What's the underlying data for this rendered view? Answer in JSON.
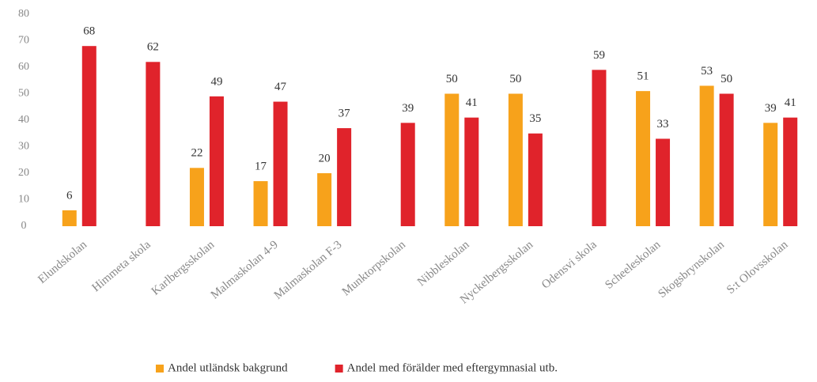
{
  "chart_data": {
    "type": "bar",
    "categories": [
      "Elundskolan",
      "Himmeta skola",
      "Karlbergsskolan",
      "Malmaskolan 4-9",
      "Malmaskolan F-3",
      "Munktorpskolan",
      "Nibbleskolan",
      "Nyckelbergsskolan",
      "Odensvi skola",
      "Scheeleskolan",
      "Skogsbrynskolan",
      "S:t Olovsskolan"
    ],
    "series": [
      {
        "name": "Andel utländsk bakgrund",
        "color": "#f7a21b",
        "values": [
          6,
          null,
          22,
          17,
          20,
          null,
          50,
          50,
          null,
          51,
          53,
          39
        ]
      },
      {
        "name": "Andel med förälder med eftergymnasial utb.",
        "color": "#e0232b",
        "values": [
          68,
          62,
          49,
          47,
          37,
          39,
          41,
          35,
          59,
          33,
          50,
          41
        ]
      }
    ],
    "ylim": [
      0,
      80
    ],
    "yticks": [
      0,
      10,
      20,
      30,
      40,
      50,
      60,
      70,
      80
    ],
    "grid": false,
    "legend": "bottom"
  }
}
